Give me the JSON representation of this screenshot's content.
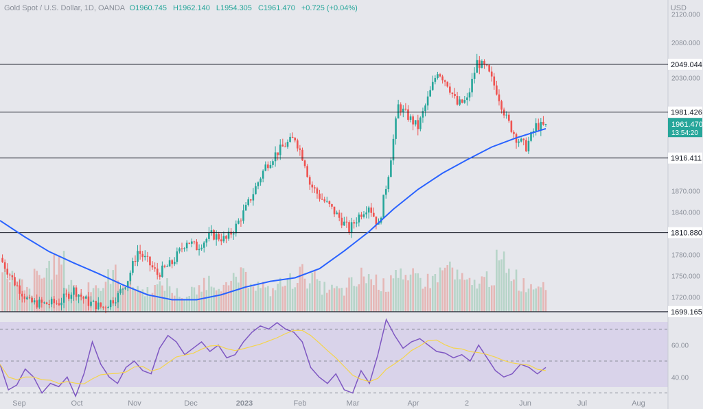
{
  "header": {
    "symbol": "Gold Spot / U.S. Dollar, 1D, OANDA",
    "o": "O1960.745",
    "h": "H1962.140",
    "l": "L1954.305",
    "c": "C1961.470",
    "change": "+0.725 (+0.04%)"
  },
  "currency": "USD",
  "colors": {
    "up": "#26a69a",
    "down": "#ef5350",
    "ma": "#2962ff",
    "rsi": "#7e57c2",
    "rsi_ma": "#f5d44a",
    "level_line": "#131722",
    "last_price_bg": "#26a69a"
  },
  "chart_data": [
    {
      "type": "candlestick",
      "title": "Gold Spot / U.S. Dollar, 1D, OANDA",
      "ylim": [
        1699,
        2140
      ],
      "y_ticks": [
        "2120.000",
        "2080.000",
        "2030.000",
        "1870.000",
        "1840.000",
        "1780.000",
        "1750.000",
        "1720.000"
      ],
      "x_ticks": [
        "Sep",
        "Oct",
        "Nov",
        "Dec",
        "2023",
        "Feb",
        "Mar",
        "Apr",
        "2",
        "Jun",
        "Jul",
        "Aug"
      ],
      "levels": [
        "2049.044",
        "1981.426",
        "1916.411",
        "1810.880",
        "1699.165"
      ],
      "last_price": "1961.470",
      "countdown": "13:54:20",
      "moving_average": {
        "points": [
          [
            0,
            1828
          ],
          [
            10,
            1805
          ],
          [
            20,
            1784
          ],
          [
            30,
            1768
          ],
          [
            40,
            1753
          ],
          [
            50,
            1737
          ],
          [
            60,
            1723
          ],
          [
            70,
            1716
          ],
          [
            80,
            1716
          ],
          [
            90,
            1723
          ],
          [
            100,
            1734
          ],
          [
            110,
            1742
          ],
          [
            120,
            1747
          ],
          [
            130,
            1760
          ],
          [
            140,
            1785
          ],
          [
            150,
            1812
          ],
          [
            160,
            1844
          ],
          [
            170,
            1872
          ],
          [
            180,
            1895
          ],
          [
            190,
            1914
          ],
          [
            200,
            1932
          ],
          [
            210,
            1945
          ],
          [
            222,
            1958
          ]
        ]
      },
      "price_path": [
        [
          0,
          1775
        ],
        [
          6,
          1740
        ],
        [
          12,
          1712
        ],
        [
          18,
          1710
        ],
        [
          24,
          1712
        ],
        [
          30,
          1730
        ],
        [
          36,
          1712
        ],
        [
          42,
          1705
        ],
        [
          48,
          1722
        ],
        [
          52,
          1745
        ],
        [
          56,
          1785
        ],
        [
          60,
          1770
        ],
        [
          64,
          1752
        ],
        [
          70,
          1768
        ],
        [
          76,
          1800
        ],
        [
          80,
          1790
        ],
        [
          86,
          1808
        ],
        [
          92,
          1801
        ],
        [
          96,
          1820
        ],
        [
          100,
          1845
        ],
        [
          104,
          1875
        ],
        [
          108,
          1905
        ],
        [
          112,
          1922
        ],
        [
          116,
          1935
        ],
        [
          120,
          1945
        ],
        [
          124,
          1910
        ],
        [
          126,
          1880
        ],
        [
          130,
          1862
        ],
        [
          134,
          1848
        ],
        [
          138,
          1832
        ],
        [
          142,
          1815
        ],
        [
          146,
          1835
        ],
        [
          150,
          1850
        ],
        [
          154,
          1820
        ],
        [
          158,
          1895
        ],
        [
          162,
          1990
        ],
        [
          166,
          1975
        ],
        [
          170,
          1960
        ],
        [
          174,
          2000
        ],
        [
          178,
          2040
        ],
        [
          182,
          2022
        ],
        [
          186,
          1992
        ],
        [
          190,
          1998
        ],
        [
          194,
          2052
        ],
        [
          198,
          2042
        ],
        [
          202,
          2012
        ],
        [
          206,
          1972
        ],
        [
          210,
          1945
        ],
        [
          214,
          1932
        ],
        [
          218,
          1962
        ],
        [
          222,
          1961
        ]
      ],
      "volume": [
        0.55,
        0.4,
        0.3,
        0.5,
        0.65,
        0.7,
        0.45,
        0.25,
        0.4,
        0.35,
        0.55,
        0.45,
        0.38,
        0.3,
        0.35,
        0.4,
        0.28,
        0.22,
        0.3,
        0.45,
        0.42,
        0.35,
        0.5,
        0.48,
        0.38,
        0.3,
        0.4,
        0.45,
        0.55,
        0.48,
        0.35,
        0.32,
        0.3,
        0.4,
        0.52,
        0.45,
        0.38,
        0.6,
        0.42,
        0.5,
        0.45,
        0.55,
        0.65,
        0.48,
        0.4,
        0.45,
        0.5,
        0.7,
        0.55,
        0.4,
        0.38,
        0.45
      ]
    },
    {
      "type": "line",
      "title": "RSI",
      "ylim": [
        20,
        80
      ],
      "y_ticks": [
        "60.00",
        "40.00"
      ],
      "bands": [
        70,
        50,
        30
      ],
      "rsi": [
        48,
        32,
        35,
        45,
        40,
        30,
        36,
        34,
        40,
        28,
        42,
        62,
        48,
        40,
        36,
        46,
        50,
        44,
        42,
        58,
        66,
        62,
        54,
        58,
        62,
        56,
        60,
        52,
        54,
        62,
        68,
        72,
        70,
        74,
        70,
        68,
        62,
        46,
        40,
        36,
        42,
        32,
        30,
        44,
        36,
        54,
        76,
        66,
        58,
        62,
        64,
        60,
        56,
        55,
        52,
        54,
        50,
        60,
        52,
        44,
        40,
        42,
        48,
        46,
        42,
        46
      ]
    }
  ]
}
